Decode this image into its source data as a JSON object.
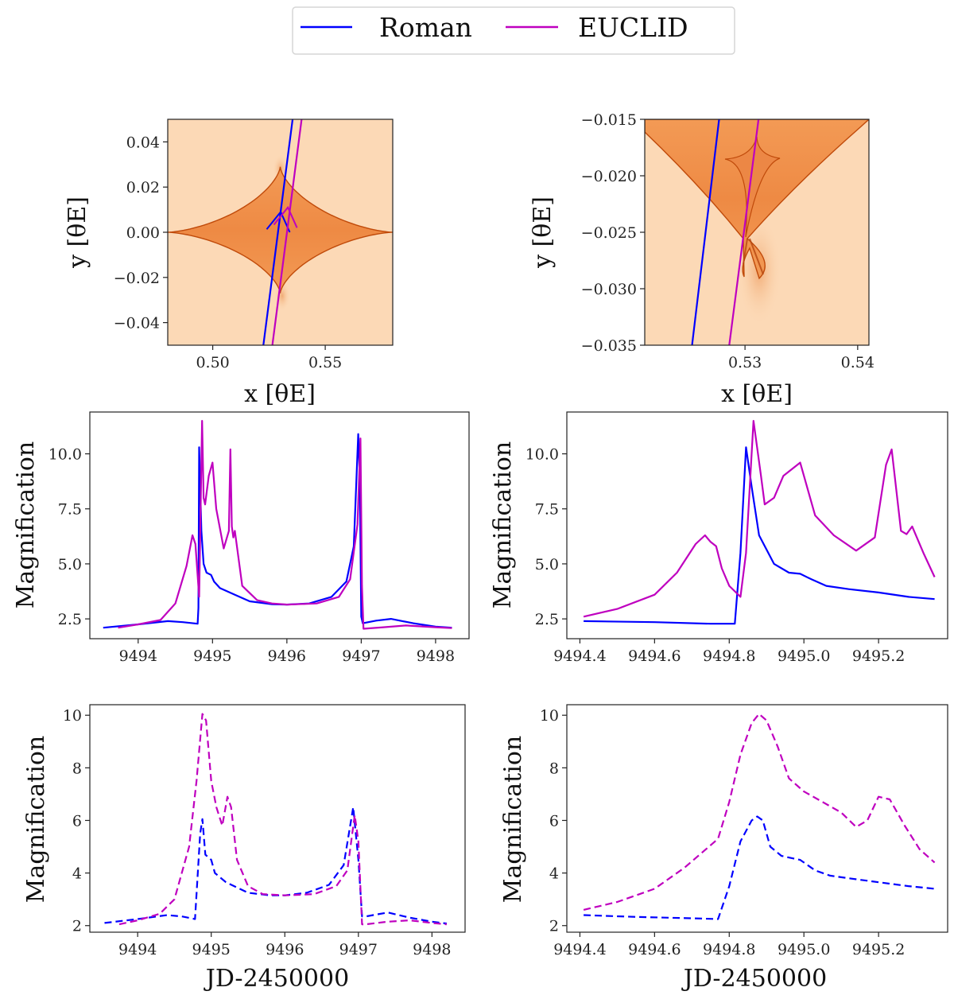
{
  "legend": {
    "placement": "top-center",
    "entries": [
      {
        "label": "Roman",
        "color": "#0000ff"
      },
      {
        "label": "EUCLID",
        "color": "#bf00bf"
      }
    ]
  },
  "colors": {
    "roman": "#0000ff",
    "euclid": "#bf00bf",
    "caustic_bg": "#fcd9b6",
    "caustic_fill": "#f2944a",
    "caustic_edge": "#c04a0a"
  },
  "chart_data": [
    {
      "id": "caustic-wide",
      "type": "heatmap",
      "title": "",
      "xlabel": "x [θE]",
      "ylabel": "y [θE]",
      "xlim": [
        0.48,
        0.58
      ],
      "ylim": [
        -0.05,
        0.05
      ],
      "xticks": [
        {
          "v": 0.5,
          "label": "0.50"
        },
        {
          "v": 0.55,
          "label": "0.55"
        }
      ],
      "yticks": [
        {
          "v": 0.04,
          "label": "0.04"
        },
        {
          "v": 0.02,
          "label": "0.02"
        },
        {
          "v": 0.0,
          "label": "0.00"
        },
        {
          "v": -0.02,
          "label": "−0.02"
        },
        {
          "v": -0.04,
          "label": "−0.04"
        }
      ],
      "caustic": {
        "shape": "astroid",
        "center": [
          0.53,
          0.0
        ],
        "x_extent": [
          0.48,
          0.58
        ],
        "y_extent": [
          -0.027,
          0.029
        ]
      },
      "trajectories": [
        {
          "name": "Roman",
          "points": [
            [
              0.5225,
              -0.05
            ],
            [
              0.5355,
              0.05
            ]
          ],
          "arrow_at": [
            0.5302,
            0.009
          ]
        },
        {
          "name": "EUCLID",
          "points": [
            [
              0.5265,
              -0.05
            ],
            [
              0.5395,
              0.05
            ]
          ],
          "arrow_at": [
            0.5334,
            0.011
          ]
        }
      ]
    },
    {
      "id": "caustic-zoom",
      "type": "heatmap",
      "title": "",
      "xlabel": "x [θE]",
      "ylabel": "y [θE]",
      "xlim": [
        0.5211,
        0.541
      ],
      "ylim": [
        -0.035,
        -0.015
      ],
      "xticks": [
        {
          "v": 0.53,
          "label": "0.53"
        },
        {
          "v": 0.54,
          "label": "0.54"
        }
      ],
      "yticks": [
        {
          "v": -0.015,
          "label": "−0.015"
        },
        {
          "v": -0.02,
          "label": "−0.020"
        },
        {
          "v": -0.025,
          "label": "−0.025"
        },
        {
          "v": -0.03,
          "label": "−0.030"
        },
        {
          "v": -0.035,
          "label": "−0.035"
        }
      ],
      "caustic": {
        "shape": "cusp-with-small-astroid",
        "cusp_tip": [
          0.5302,
          -0.0265
        ],
        "small_astroid_center": [
          0.5302,
          -0.0185
        ]
      },
      "trajectories": [
        {
          "name": "Roman",
          "points": [
            [
              0.5253,
              -0.035
            ],
            [
              0.5277,
              -0.015
            ]
          ]
        },
        {
          "name": "EUCLID",
          "points": [
            [
              0.5286,
              -0.035
            ],
            [
              0.5312,
              -0.015
            ]
          ]
        }
      ]
    },
    {
      "id": "lightcurve-full",
      "type": "line",
      "title": "",
      "xlabel": "",
      "ylabel": "Magnification",
      "xlim": [
        9493.35,
        9498.45
      ],
      "ylim": [
        1.6,
        11.9
      ],
      "xticks": [
        {
          "v": 9494,
          "label": "9494"
        },
        {
          "v": 9495,
          "label": "9495"
        },
        {
          "v": 9496,
          "label": "9496"
        },
        {
          "v": 9497,
          "label": "9497"
        },
        {
          "v": 9498,
          "label": "9498"
        }
      ],
      "yticks": [
        {
          "v": 2.5,
          "label": "2.5"
        },
        {
          "v": 5.0,
          "label": "5.0"
        },
        {
          "v": 7.5,
          "label": "7.5"
        },
        {
          "v": 10.0,
          "label": "10.0"
        }
      ],
      "series": [
        {
          "name": "Roman",
          "style": "solid",
          "x": [
            9493.53,
            9494.0,
            9494.4,
            9494.6,
            9494.8,
            9494.81,
            9494.82,
            9494.85,
            9494.88,
            9494.92,
            9494.98,
            9495.02,
            9495.1,
            9495.3,
            9495.5,
            9495.8,
            9496.0,
            9496.3,
            9496.6,
            9496.8,
            9496.9,
            9496.96,
            9496.98,
            9497.0,
            9497.02,
            9497.2,
            9497.4,
            9497.7,
            9498.0,
            9498.22
          ],
          "y": [
            2.1,
            2.25,
            2.4,
            2.35,
            2.28,
            3.0,
            10.3,
            6.5,
            5.0,
            4.6,
            4.5,
            4.2,
            3.9,
            3.6,
            3.3,
            3.17,
            3.15,
            3.2,
            3.5,
            4.2,
            5.8,
            10.9,
            9.0,
            2.6,
            2.3,
            2.42,
            2.5,
            2.3,
            2.15,
            2.1
          ]
        },
        {
          "name": "EUCLID",
          "style": "solid",
          "x": [
            9493.73,
            9494.0,
            9494.3,
            9494.5,
            9494.65,
            9494.73,
            9494.77,
            9494.82,
            9494.86,
            9494.88,
            9494.9,
            9494.95,
            9495.0,
            9495.05,
            9495.15,
            9495.22,
            9495.24,
            9495.26,
            9495.28,
            9495.3,
            9495.4,
            9495.6,
            9495.8,
            9496.0,
            9496.4,
            9496.7,
            9496.85,
            9496.95,
            9496.99,
            9497.01,
            9497.03,
            9497.3,
            9497.6,
            9498.0,
            9498.22
          ],
          "y": [
            2.1,
            2.25,
            2.45,
            3.2,
            4.9,
            6.3,
            5.9,
            3.5,
            11.5,
            8.0,
            7.7,
            9.0,
            9.6,
            7.5,
            5.7,
            6.5,
            10.2,
            6.7,
            6.2,
            6.5,
            4.0,
            3.35,
            3.2,
            3.15,
            3.2,
            3.5,
            4.3,
            6.8,
            10.7,
            4.0,
            2.05,
            2.12,
            2.2,
            2.12,
            2.08
          ]
        }
      ]
    },
    {
      "id": "lightcurve-zoom",
      "type": "line",
      "title": "",
      "xlabel": "",
      "ylabel": "Magnification",
      "xlim": [
        9494.365,
        9495.385
      ],
      "ylim": [
        1.6,
        11.9
      ],
      "xticks": [
        {
          "v": 9494.4,
          "label": "9494.4"
        },
        {
          "v": 9494.6,
          "label": "9494.6"
        },
        {
          "v": 9494.8,
          "label": "9494.8"
        },
        {
          "v": 9495.0,
          "label": "9495.0"
        },
        {
          "v": 9495.2,
          "label": "9495.2"
        }
      ],
      "yticks": [
        {
          "v": 2.5,
          "label": "2.5"
        },
        {
          "v": 5.0,
          "label": "5.0"
        },
        {
          "v": 7.5,
          "label": "7.5"
        },
        {
          "v": 10.0,
          "label": "10.0"
        }
      ],
      "series": [
        {
          "name": "Roman",
          "style": "solid",
          "x": [
            9494.41,
            9494.6,
            9494.75,
            9494.815,
            9494.83,
            9494.845,
            9494.86,
            9494.88,
            9494.92,
            9494.96,
            9494.99,
            9495.02,
            9495.06,
            9495.12,
            9495.2,
            9495.28,
            9495.35
          ],
          "y": [
            2.4,
            2.35,
            2.28,
            2.28,
            5.5,
            10.3,
            8.5,
            6.3,
            5.0,
            4.6,
            4.55,
            4.3,
            4.0,
            3.85,
            3.7,
            3.5,
            3.4
          ]
        },
        {
          "name": "EUCLID",
          "style": "solid",
          "x": [
            9494.41,
            9494.5,
            9494.6,
            9494.66,
            9494.71,
            9494.735,
            9494.75,
            9494.765,
            9494.78,
            9494.8,
            9494.83,
            9494.845,
            9494.865,
            9494.885,
            9494.895,
            9494.92,
            9494.945,
            9494.99,
            9495.03,
            9495.08,
            9495.14,
            9495.19,
            9495.22,
            9495.235,
            9495.26,
            9495.275,
            9495.29,
            9495.32,
            9495.35
          ],
          "y": [
            2.6,
            2.95,
            3.6,
            4.6,
            5.9,
            6.3,
            6.0,
            5.8,
            4.8,
            4.0,
            3.5,
            5.5,
            11.5,
            9.0,
            7.7,
            8.0,
            9.0,
            9.6,
            7.2,
            6.3,
            5.6,
            6.2,
            9.5,
            10.2,
            6.5,
            6.35,
            6.7,
            5.5,
            4.4
          ]
        }
      ]
    },
    {
      "id": "lightcurve-full-smoothed",
      "type": "line",
      "title": "",
      "xlabel": "JD-2450000",
      "ylabel": "Magnification",
      "xlim": [
        9493.35,
        9498.45
      ],
      "ylim": [
        1.75,
        10.4
      ],
      "xticks": [
        {
          "v": 9494,
          "label": "9494"
        },
        {
          "v": 9495,
          "label": "9495"
        },
        {
          "v": 9496,
          "label": "9496"
        },
        {
          "v": 9497,
          "label": "9497"
        },
        {
          "v": 9498,
          "label": "9498"
        }
      ],
      "yticks": [
        {
          "v": 2,
          "label": "2"
        },
        {
          "v": 4,
          "label": "4"
        },
        {
          "v": 6,
          "label": "6"
        },
        {
          "v": 8,
          "label": "8"
        },
        {
          "v": 10,
          "label": "10"
        }
      ],
      "series": [
        {
          "name": "Roman",
          "style": "dashed",
          "x": [
            9493.55,
            9494.0,
            9494.4,
            9494.6,
            9494.78,
            9494.85,
            9494.88,
            9494.92,
            9495.0,
            9495.05,
            9495.2,
            9495.5,
            9495.8,
            9496.0,
            9496.3,
            9496.6,
            9496.8,
            9496.93,
            9497.0,
            9497.05,
            9497.1,
            9497.4,
            9497.7,
            9498.0,
            9498.2
          ],
          "y": [
            2.1,
            2.25,
            2.4,
            2.35,
            2.25,
            5.5,
            6.05,
            4.7,
            4.5,
            4.0,
            3.65,
            3.25,
            3.15,
            3.15,
            3.25,
            3.55,
            4.3,
            6.5,
            4.5,
            2.35,
            2.35,
            2.5,
            2.3,
            2.15,
            2.08
          ]
        },
        {
          "name": "EUCLID",
          "style": "dashed",
          "x": [
            9493.75,
            9494.0,
            9494.3,
            9494.5,
            9494.7,
            9494.8,
            9494.88,
            9494.93,
            9495.0,
            9495.07,
            9495.15,
            9495.22,
            9495.27,
            9495.35,
            9495.5,
            9495.7,
            9496.0,
            9496.4,
            9496.7,
            9496.85,
            9496.95,
            9497.0,
            9497.05,
            9497.1,
            9497.4,
            9497.7,
            9498.0,
            9498.2
          ],
          "y": [
            2.05,
            2.2,
            2.45,
            3.0,
            5.0,
            7.5,
            10.05,
            9.8,
            7.5,
            6.5,
            5.8,
            6.9,
            6.5,
            4.5,
            3.5,
            3.2,
            3.15,
            3.2,
            3.5,
            4.1,
            6.2,
            5.2,
            2.05,
            2.05,
            2.15,
            2.2,
            2.1,
            2.05
          ]
        }
      ]
    },
    {
      "id": "lightcurve-zoom-smoothed",
      "type": "line",
      "title": "",
      "xlabel": "JD-2450000",
      "ylabel": "Magnification",
      "xlim": [
        9494.365,
        9495.385
      ],
      "ylim": [
        1.75,
        10.4
      ],
      "xticks": [
        {
          "v": 9494.4,
          "label": "9494.4"
        },
        {
          "v": 9494.6,
          "label": "9494.6"
        },
        {
          "v": 9494.8,
          "label": "9494.8"
        },
        {
          "v": 9495.0,
          "label": "9495.0"
        },
        {
          "v": 9495.2,
          "label": "9495.2"
        }
      ],
      "yticks": [
        {
          "v": 2,
          "label": "2"
        },
        {
          "v": 4,
          "label": "4"
        },
        {
          "v": 6,
          "label": "6"
        },
        {
          "v": 8,
          "label": "8"
        },
        {
          "v": 10,
          "label": "10"
        }
      ],
      "series": [
        {
          "name": "Roman",
          "style": "dashed",
          "x": [
            9494.41,
            9494.55,
            9494.7,
            9494.77,
            9494.8,
            9494.83,
            9494.86,
            9494.875,
            9494.89,
            9494.91,
            9494.94,
            9494.99,
            9495.03,
            9495.07,
            9495.12,
            9495.2,
            9495.28,
            9495.35
          ],
          "y": [
            2.4,
            2.33,
            2.28,
            2.25,
            3.5,
            5.2,
            6.0,
            6.15,
            6.0,
            5.0,
            4.65,
            4.5,
            4.1,
            3.9,
            3.8,
            3.65,
            3.5,
            3.4
          ]
        },
        {
          "name": "EUCLID",
          "style": "dashed",
          "x": [
            9494.41,
            9494.5,
            9494.6,
            9494.68,
            9494.77,
            9494.8,
            9494.83,
            9494.86,
            9494.88,
            9494.9,
            9494.93,
            9494.96,
            9495.0,
            9495.05,
            9495.1,
            9495.14,
            9495.17,
            9495.2,
            9495.23,
            9495.27,
            9495.31,
            9495.35
          ],
          "y": [
            2.6,
            2.9,
            3.4,
            4.2,
            5.3,
            6.7,
            8.5,
            9.7,
            10.05,
            9.8,
            8.8,
            7.6,
            7.1,
            6.7,
            6.3,
            5.75,
            6.0,
            6.9,
            6.8,
            5.8,
            4.9,
            4.4
          ]
        }
      ]
    }
  ]
}
